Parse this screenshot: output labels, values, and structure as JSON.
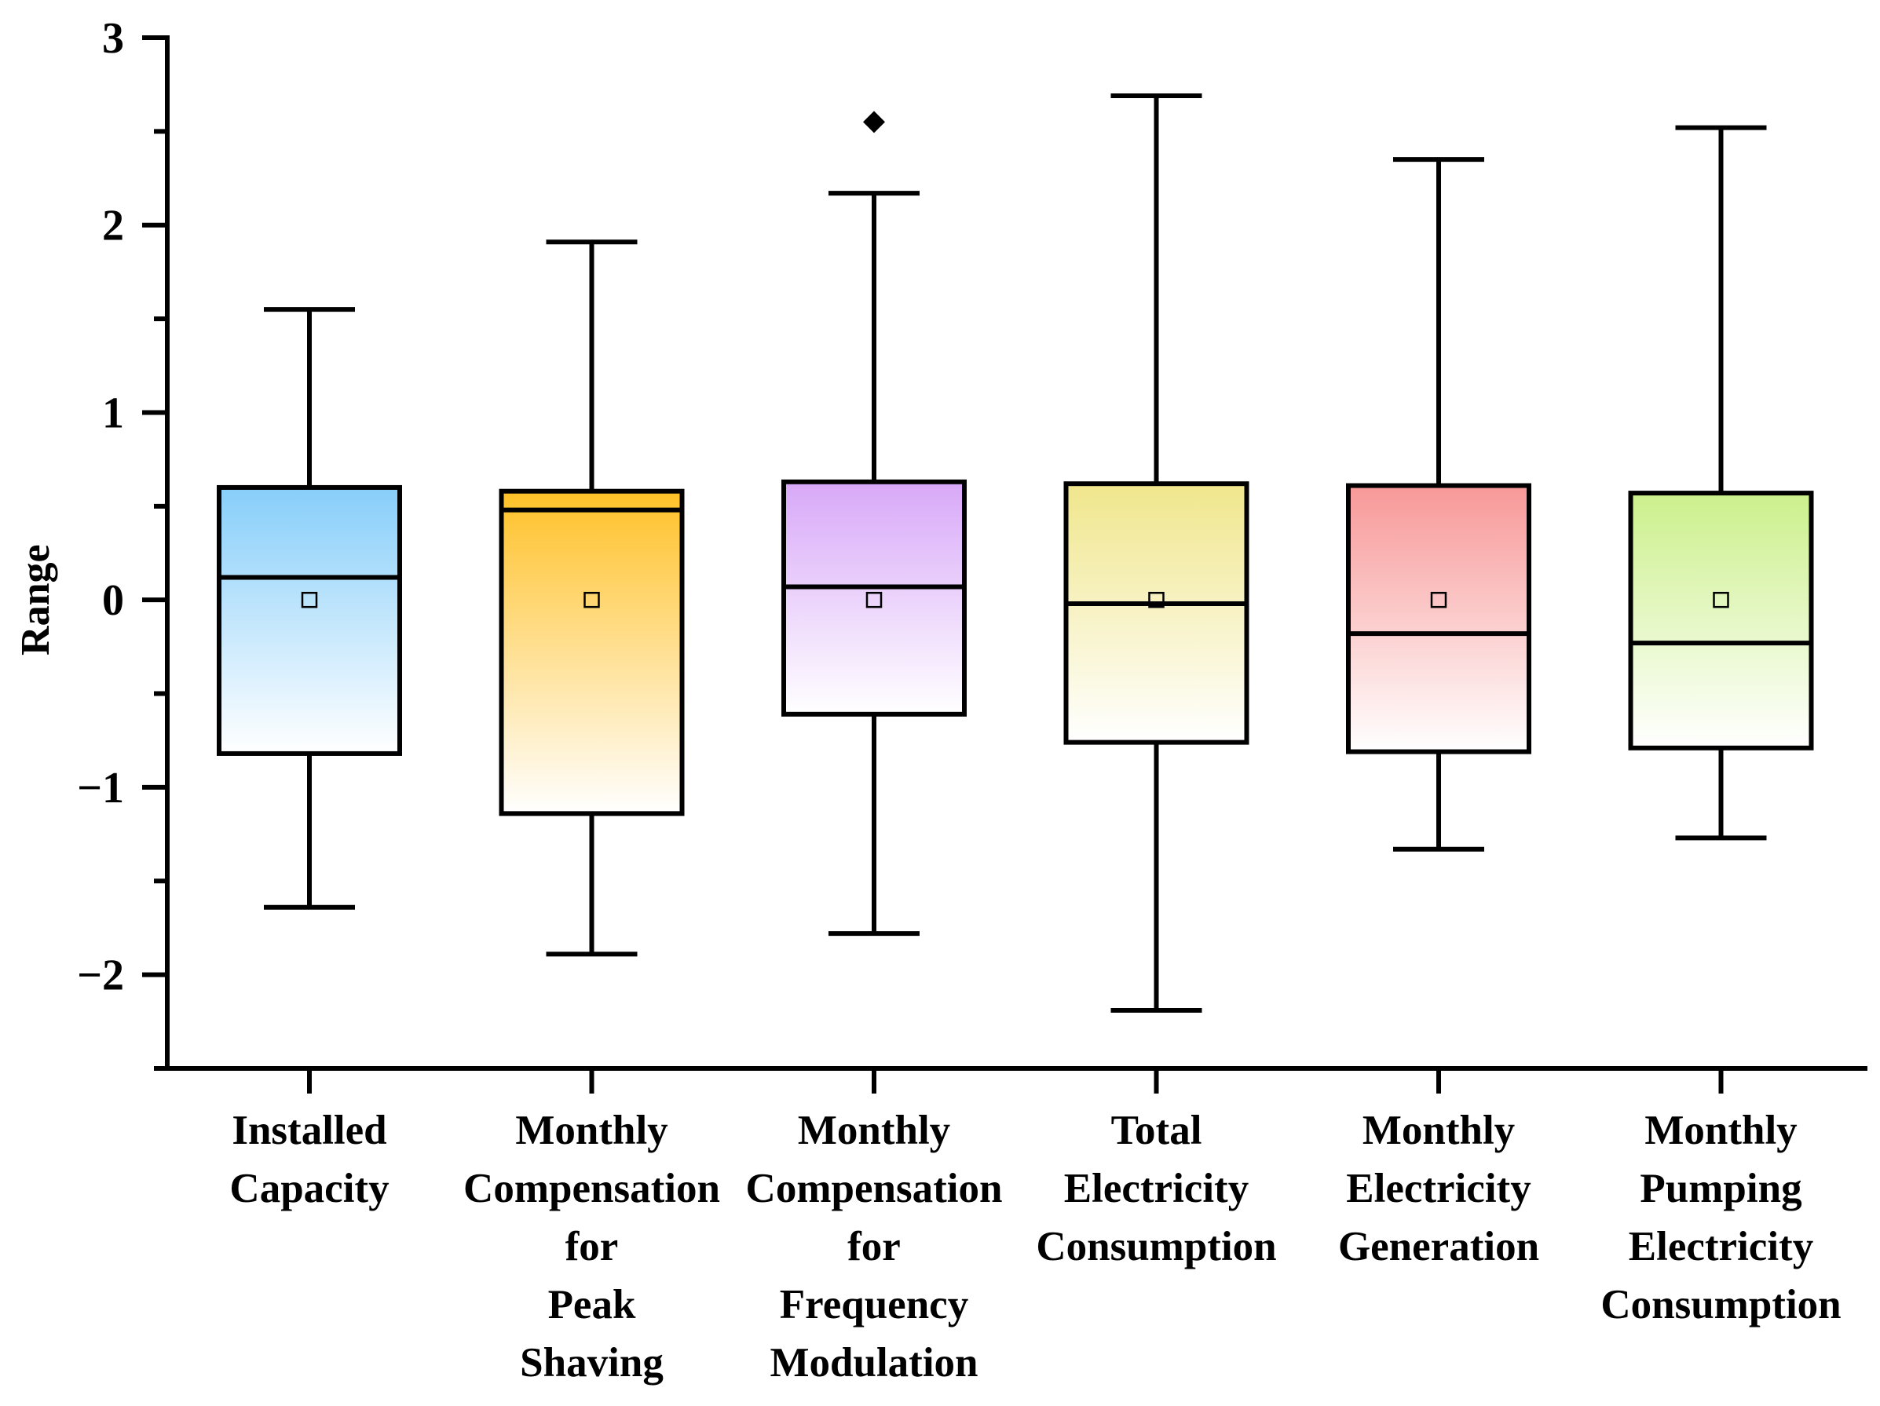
{
  "chart_data": {
    "type": "box",
    "title": "",
    "xlabel": "",
    "ylabel": "Range",
    "ylim": [
      -2.5,
      3
    ],
    "yticks": [
      -2,
      -1,
      0,
      1,
      2,
      3
    ],
    "ytick_labels": [
      "−2",
      "−1",
      "0",
      "1",
      "2",
      "3"
    ],
    "grid": false,
    "legend": "none",
    "series": [
      {
        "name": "Installed Capacity",
        "label_lines": [
          "Installed",
          "Capacity"
        ],
        "whisker_high": 1.55,
        "q3": 0.6,
        "median": 0.12,
        "q1": -0.82,
        "whisker_low": -1.64,
        "mean": 0.0,
        "outliers": [],
        "color": "#87cefa"
      },
      {
        "name": "Monthly Compensation for Peak Shaving",
        "label_lines": [
          "Monthly",
          "Compensation",
          "for",
          "Peak",
          "Shaving"
        ],
        "whisker_high": 1.91,
        "q3": 0.58,
        "median": 0.48,
        "q1": -1.14,
        "whisker_low": -1.89,
        "mean": 0.0,
        "outliers": [],
        "color": "#ffc128"
      },
      {
        "name": "Monthly Compensation for Frequency Modulation",
        "label_lines": [
          "Monthly",
          "Compensation",
          "for",
          "Frequency",
          "Modulation"
        ],
        "whisker_high": 2.17,
        "q3": 0.63,
        "median": 0.07,
        "q1": -0.61,
        "whisker_low": -1.78,
        "mean": 0.0,
        "outliers": [
          2.55
        ],
        "color": "#d8a8f8"
      },
      {
        "name": "Total Electricity Consumption",
        "label_lines": [
          "Total",
          "Electricity",
          "Consumption"
        ],
        "whisker_high": 2.69,
        "q3": 0.62,
        "median": -0.02,
        "q1": -0.76,
        "whisker_low": -2.19,
        "mean": 0.0,
        "outliers": [],
        "color": "#f0e68c"
      },
      {
        "name": "Monthly Electricity Generation",
        "label_lines": [
          "Monthly",
          "Electricity",
          "Generation"
        ],
        "whisker_high": 2.35,
        "q3": 0.61,
        "median": -0.18,
        "q1": -0.81,
        "whisker_low": -1.33,
        "mean": 0.0,
        "outliers": [],
        "color": "#f89898"
      },
      {
        "name": "Monthly Pumping Electricity Consumption",
        "label_lines": [
          "Monthly",
          "Pumping",
          "Electricity",
          "Consumption"
        ],
        "whisker_high": 2.52,
        "q3": 0.57,
        "median": -0.23,
        "q1": -0.79,
        "whisker_low": -1.27,
        "mean": 0.0,
        "outliers": [],
        "color": "#ccf08c"
      }
    ]
  }
}
